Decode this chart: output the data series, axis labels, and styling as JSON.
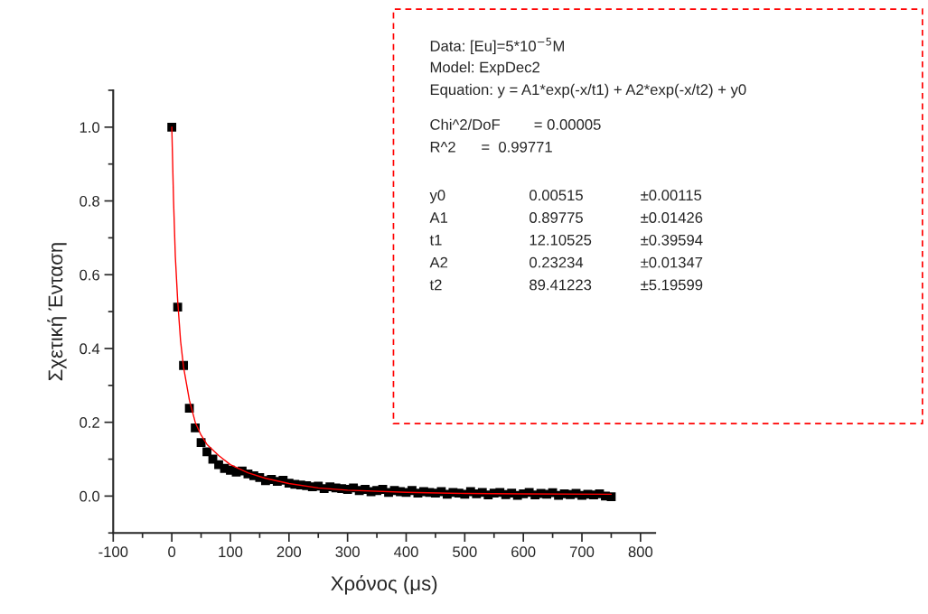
{
  "chart_data": {
    "type": "scatter",
    "xlabel": "Χρόνος (μs)",
    "ylabel": "Σχετική Ένταση",
    "x": [
      0,
      10,
      20,
      30,
      40,
      50,
      60,
      70,
      80,
      90,
      100,
      110,
      120,
      130,
      140,
      150,
      160,
      170,
      180,
      190,
      200,
      210,
      220,
      230,
      240,
      250,
      260,
      270,
      280,
      290,
      300,
      310,
      320,
      330,
      340,
      350,
      360,
      370,
      380,
      390,
      400,
      410,
      420,
      430,
      440,
      450,
      460,
      470,
      480,
      490,
      500,
      510,
      520,
      530,
      540,
      550,
      560,
      570,
      580,
      590,
      600,
      610,
      620,
      630,
      640,
      650,
      660,
      670,
      680,
      690,
      700,
      710,
      720,
      730,
      740,
      750
    ],
    "series": [
      {
        "color": "#000000",
        "marker": "square",
        "values": [
          1.0,
          0.512,
          0.354,
          0.238,
          0.185,
          0.145,
          0.12,
          0.1,
          0.085,
          0.075,
          0.07,
          0.065,
          0.068,
          0.06,
          0.055,
          0.05,
          0.042,
          0.045,
          0.04,
          0.043,
          0.035,
          0.032,
          0.03,
          0.028,
          0.025,
          0.027,
          0.02,
          0.025,
          0.022,
          0.02,
          0.018,
          0.022,
          0.015,
          0.018,
          0.012,
          0.015,
          0.018,
          0.01,
          0.015,
          0.012,
          0.01,
          0.015,
          0.008,
          0.012,
          0.01,
          0.008,
          0.012,
          0.005,
          0.01,
          0.008,
          0.005,
          0.012,
          0.006,
          0.01,
          0.003,
          0.008,
          0.01,
          0.004,
          0.008,
          0.002,
          0.006,
          0.01,
          0.003,
          0.007,
          0.005,
          0.009,
          0.002,
          0.006,
          0.004,
          0.007,
          0.002,
          0.005,
          0.003,
          0.006,
          0.0,
          -0.002
        ]
      },
      {
        "type": "line",
        "color": "#ff0000",
        "marker": "none",
        "line_style": "solid",
        "x": [
          0,
          3,
          6,
          10,
          15,
          20,
          30,
          40,
          50,
          60,
          80,
          100,
          130,
          160,
          200,
          250,
          300,
          400,
          500,
          600,
          750
        ],
        "values": [
          1.0,
          0.8,
          0.65,
          0.53,
          0.42,
          0.35,
          0.26,
          0.2,
          0.165,
          0.14,
          0.11,
          0.085,
          0.063,
          0.048,
          0.034,
          0.022,
          0.016,
          0.01,
          0.007,
          0.006,
          0.005
        ]
      }
    ],
    "xlim": [
      -100,
      825
    ],
    "ylim": [
      -0.1,
      1.1
    ],
    "xticks": [
      -100,
      0,
      100,
      200,
      300,
      400,
      500,
      600,
      700,
      800
    ],
    "yticks": [
      {
        "value": 0,
        "label": "0.0"
      },
      {
        "value": 0.2,
        "label": "0.2"
      },
      {
        "value": 0.4,
        "label": "0.4"
      },
      {
        "value": 0.6,
        "label": "0.6"
      },
      {
        "value": 0.8,
        "label": "0.8"
      },
      {
        "value": 1.0,
        "label": "1.0"
      }
    ],
    "grid": false,
    "legend": false,
    "annotations": [
      "Data: [Eu]=5*10$^{−5}$M",
      "Model: ExpDec2",
      "Equation: y = A1*exp(-x/t1) + A2*exp(-x/t2) + y0",
      "Chi^2/DoF        = 0.00005",
      "R^2      =  0.99771",
      "y0",
      "0.00515",
      "±0.00115",
      "A1",
      "0.89775",
      "±0.01426",
      "t1",
      "12.10525",
      "±0.39594",
      "A2",
      "0.23234",
      "±0.01347",
      "t2",
      "89.41223",
      "±5.19599"
    ]
  }
}
